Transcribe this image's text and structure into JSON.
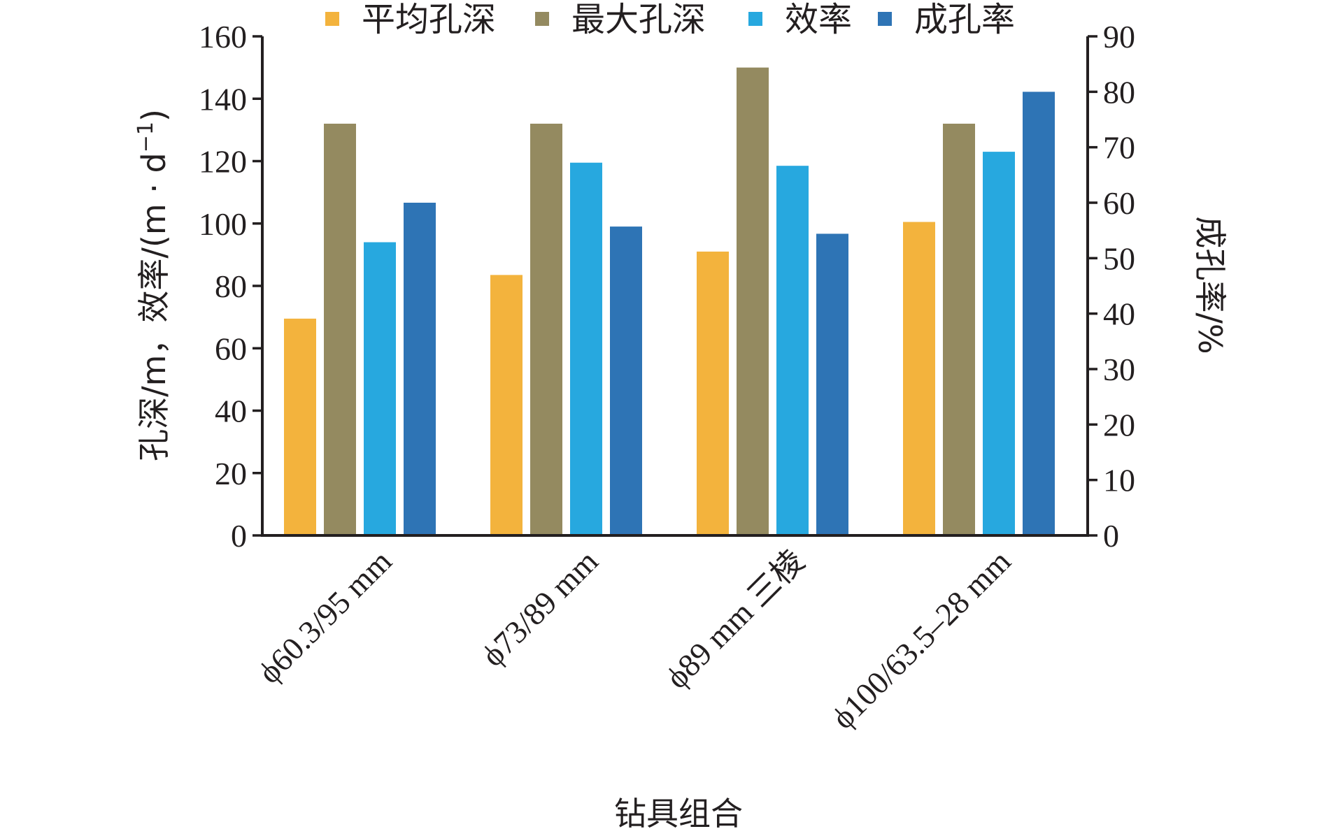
{
  "chart_data": {
    "type": "bar",
    "categories": [
      "ϕ60.3/95 mm",
      "ϕ73/89 mm",
      "ϕ89 mm 三棱",
      "ϕ100/63.5–28 mm"
    ],
    "series": [
      {
        "name": "平均孔深",
        "axis": "left",
        "color": "#f3b33d",
        "values": [
          69.5,
          83.5,
          91,
          100.5
        ]
      },
      {
        "name": "最大孔深",
        "axis": "left",
        "color": "#948a60",
        "values": [
          132,
          132,
          150,
          132
        ]
      },
      {
        "name": "效率",
        "axis": "left",
        "color": "#27a8df",
        "values": [
          94,
          119.5,
          118.5,
          123
        ]
      },
      {
        "name": "成孔率",
        "axis": "right",
        "color": "#2e74b5",
        "values": [
          60,
          55.7,
          54.4,
          80
        ]
      }
    ],
    "xlabel": "钻具组合",
    "ylabel": "孔深/m，效率/(m · d",
    "ylabel_sup": "−1",
    "ylabel_close": ")",
    "y2label": "成孔率/%",
    "ylim": [
      0,
      160
    ],
    "yticks": [
      "0",
      "20",
      "40",
      "60",
      "80",
      "100",
      "120",
      "140",
      "160"
    ],
    "y2lim": [
      0,
      90
    ],
    "y2ticks": [
      "0",
      "10",
      "20",
      "30",
      "40",
      "50",
      "60",
      "70",
      "80",
      "90"
    ],
    "legend_position": "top",
    "grid": false
  }
}
